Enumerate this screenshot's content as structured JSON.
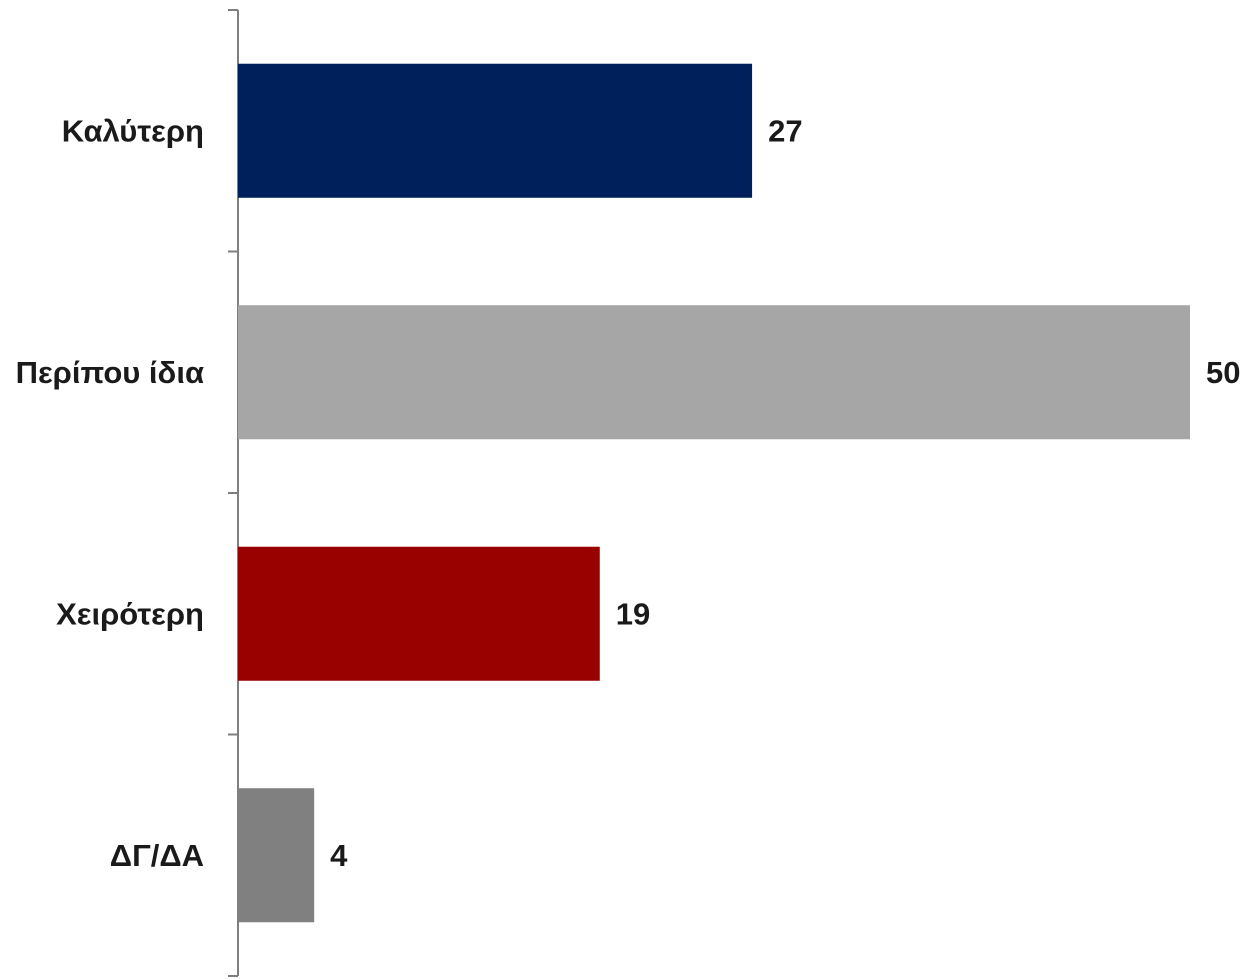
{
  "chart_data": {
    "type": "bar",
    "orientation": "horizontal",
    "categories": [
      "Καλύτερη",
      "Περίπου ίδια",
      "Χειρότερη",
      "ΔΓ/ΔΑ"
    ],
    "values": [
      27,
      50,
      19,
      4
    ],
    "value_labels": [
      "27",
      "50",
      "19",
      "4"
    ],
    "colors": [
      "#00205B",
      "#A6A6A6",
      "#990000",
      "#808080"
    ],
    "xlim": [
      0,
      50
    ],
    "grid": false,
    "legend": "none",
    "title": "",
    "xlabel": "",
    "ylabel": ""
  }
}
